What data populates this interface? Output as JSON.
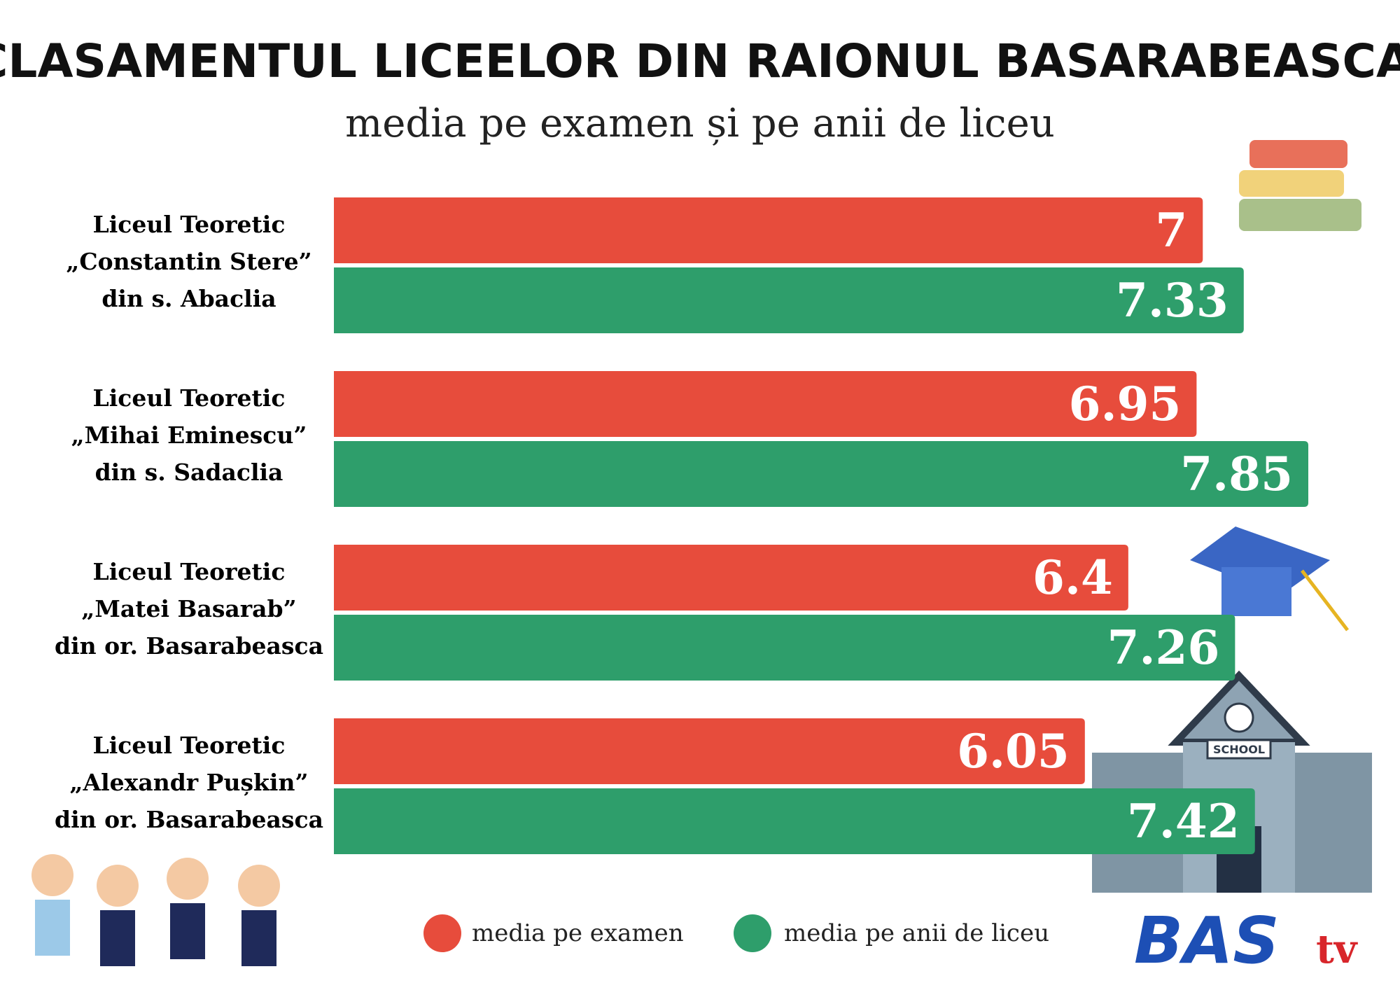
{
  "chart_data": {
    "type": "bar",
    "orientation": "horizontal",
    "title": "CLASAMENTUL LICEELOR DIN RAIONUL BASARABEASCA",
    "subtitle": "media pe examen și pe anii de liceu",
    "categories": [
      [
        "Liceul Teoretic",
        "„Constantin Stere”",
        "din s. Abaclia"
      ],
      [
        "Liceul Teoretic",
        "„Mihai Eminescu”",
        "din s. Sadaclia"
      ],
      [
        "Liceul Teoretic",
        "„Matei Basarab”",
        "din or. Basarabeasca"
      ],
      [
        "Liceul Teoretic",
        "„Alexandr Pușkin”",
        "din or. Basarabeasca"
      ]
    ],
    "series": [
      {
        "name": "media pe examen",
        "color": "#e74c3c",
        "values": [
          7,
          6.95,
          6.4,
          6.05
        ]
      },
      {
        "name": "media pe anii de liceu",
        "color": "#2e9e6b",
        "values": [
          7.33,
          7.85,
          7.26,
          7.42
        ]
      }
    ],
    "logo": {
      "main": "BAS",
      "suffix": "tv"
    },
    "building_sign": "SCHOOL"
  }
}
